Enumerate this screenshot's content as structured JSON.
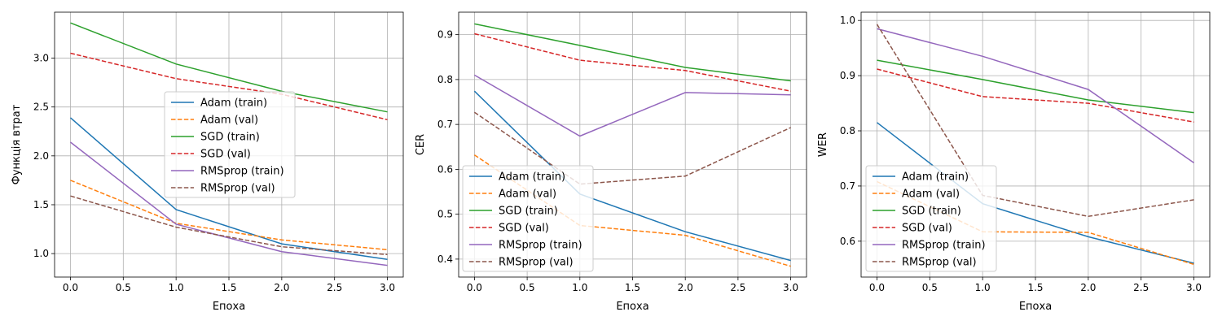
{
  "figure": {
    "background": "#ffffff"
  },
  "colors": {
    "Adam": "#1f77b4",
    "Adam_val": "#ff7f0e",
    "SGD": "#2ca02c",
    "SGD_val": "#d62728",
    "RMSprop": "#9467bd",
    "RMSprop_val": "#8c564b"
  },
  "chart_data": [
    {
      "type": "line",
      "title": "",
      "xlabel": "Епоха",
      "ylabel": "Функція втрат",
      "xlim": [
        -0.15,
        3.15
      ],
      "ylim": [
        0.76,
        3.47
      ],
      "xticks": [
        "0.0",
        "0.5",
        "1.0",
        "1.5",
        "2.0",
        "2.5",
        "3.0"
      ],
      "yticks": [
        "1.0",
        "1.5",
        "2.0",
        "2.5",
        "3.0"
      ],
      "grid": true,
      "legend_position": "center",
      "x": [
        0,
        1,
        2,
        3
      ],
      "series": [
        {
          "name": "Adam (train)",
          "values": [
            2.39,
            1.45,
            1.1,
            0.94
          ],
          "color": "#1f77b4",
          "dash": "solid"
        },
        {
          "name": "Adam (val)",
          "values": [
            1.75,
            1.31,
            1.14,
            1.04
          ],
          "color": "#ff7f0e",
          "dash": "dashed"
        },
        {
          "name": "SGD (train)",
          "values": [
            3.36,
            2.94,
            2.66,
            2.45
          ],
          "color": "#2ca02c",
          "dash": "solid"
        },
        {
          "name": "SGD (val)",
          "values": [
            3.05,
            2.79,
            2.63,
            2.37
          ],
          "color": "#d62728",
          "dash": "dashed"
        },
        {
          "name": "RMSprop (train)",
          "values": [
            2.14,
            1.3,
            1.02,
            0.88
          ],
          "color": "#9467bd",
          "dash": "solid"
        },
        {
          "name": "RMSprop (val)",
          "values": [
            1.59,
            1.27,
            1.07,
            0.99
          ],
          "color": "#8c564b",
          "dash": "dashed"
        }
      ]
    },
    {
      "type": "line",
      "title": "",
      "xlabel": "Епоха",
      "ylabel": "CER",
      "xlim": [
        -0.15,
        3.15
      ],
      "ylim": [
        0.36,
        0.95
      ],
      "xticks": [
        "0.0",
        "0.5",
        "1.0",
        "1.5",
        "2.0",
        "2.5",
        "3.0"
      ],
      "yticks": [
        "0.4",
        "0.5",
        "0.6",
        "0.7",
        "0.8",
        "0.9"
      ],
      "grid": true,
      "legend_position": "lower left",
      "x": [
        0,
        1,
        2,
        3
      ],
      "series": [
        {
          "name": "Adam (train)",
          "values": [
            0.774,
            0.545,
            0.461,
            0.397
          ],
          "color": "#1f77b4",
          "dash": "solid"
        },
        {
          "name": "Adam (val)",
          "values": [
            0.632,
            0.475,
            0.453,
            0.384
          ],
          "color": "#ff7f0e",
          "dash": "dashed"
        },
        {
          "name": "SGD (train)",
          "values": [
            0.924,
            0.876,
            0.827,
            0.797
          ],
          "color": "#2ca02c",
          "dash": "solid"
        },
        {
          "name": "SGD (val)",
          "values": [
            0.902,
            0.843,
            0.82,
            0.774
          ],
          "color": "#d62728",
          "dash": "dashed"
        },
        {
          "name": "RMSprop (train)",
          "values": [
            0.81,
            0.674,
            0.771,
            0.766
          ],
          "color": "#9467bd",
          "dash": "solid"
        },
        {
          "name": "RMSprop (val)",
          "values": [
            0.727,
            0.567,
            0.585,
            0.693
          ],
          "color": "#8c564b",
          "dash": "dashed"
        }
      ]
    },
    {
      "type": "line",
      "title": "",
      "xlabel": "Епоха",
      "ylabel": "WER",
      "xlim": [
        -0.15,
        3.15
      ],
      "ylim": [
        0.535,
        1.015
      ],
      "xticks": [
        "0.0",
        "0.5",
        "1.0",
        "1.5",
        "2.0",
        "2.5",
        "3.0"
      ],
      "yticks": [
        "0.6",
        "0.7",
        "0.8",
        "0.9",
        "1.0"
      ],
      "grid": true,
      "legend_position": "lower left",
      "x": [
        0,
        1,
        2,
        3
      ],
      "series": [
        {
          "name": "Adam (train)",
          "values": [
            0.815,
            0.668,
            0.608,
            0.56
          ],
          "color": "#1f77b4",
          "dash": "solid"
        },
        {
          "name": "Adam (val)",
          "values": [
            0.708,
            0.617,
            0.616,
            0.558
          ],
          "color": "#ff7f0e",
          "dash": "dashed"
        },
        {
          "name": "SGD (train)",
          "values": [
            0.928,
            0.893,
            0.856,
            0.833
          ],
          "color": "#2ca02c",
          "dash": "solid"
        },
        {
          "name": "SGD (val)",
          "values": [
            0.912,
            0.862,
            0.85,
            0.816
          ],
          "color": "#d62728",
          "dash": "dashed"
        },
        {
          "name": "RMSprop (train)",
          "values": [
            0.985,
            0.935,
            0.875,
            0.742
          ],
          "color": "#9467bd",
          "dash": "solid"
        },
        {
          "name": "RMSprop (val)",
          "values": [
            0.993,
            0.683,
            0.645,
            0.675
          ],
          "color": "#8c564b",
          "dash": "dashed"
        }
      ]
    }
  ]
}
